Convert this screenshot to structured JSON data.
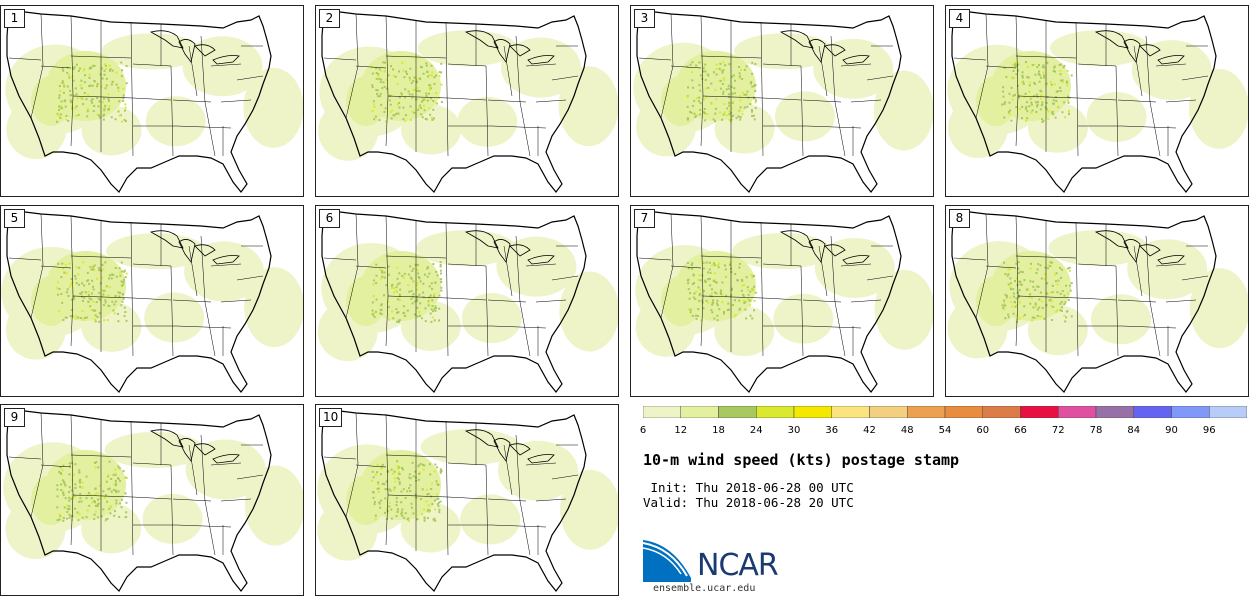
{
  "panels": [
    {
      "label": "1"
    },
    {
      "label": "2"
    },
    {
      "label": "3"
    },
    {
      "label": "4"
    },
    {
      "label": "5"
    },
    {
      "label": "6"
    },
    {
      "label": "7"
    },
    {
      "label": "8"
    },
    {
      "label": "9"
    },
    {
      "label": "10"
    }
  ],
  "colorbar": {
    "ticks": [
      "6",
      "12",
      "18",
      "24",
      "30",
      "36",
      "42",
      "48",
      "54",
      "60",
      "66",
      "72",
      "78",
      "84",
      "90",
      "96"
    ],
    "colors": [
      "#eef4c8",
      "#e2f0a0",
      "#a8c860",
      "#dbe830",
      "#f5e800",
      "#fbe480",
      "#f3cf80",
      "#eda050",
      "#e88c40",
      "#dc7c48",
      "#e81040",
      "#e050a0",
      "#9870a8",
      "#6464f0",
      "#8098f8",
      "#b8ccf8"
    ]
  },
  "title": "10-m wind speed (kts) postage stamp",
  "init_line": " Init: Thu 2018-06-28 00 UTC",
  "valid_line": "Valid: Thu 2018-06-28 20 UTC",
  "logo": {
    "name": "NCAR",
    "url": "ensemble.ucar.edu",
    "colors": [
      "#0070c0",
      "#1a3a70"
    ]
  }
}
